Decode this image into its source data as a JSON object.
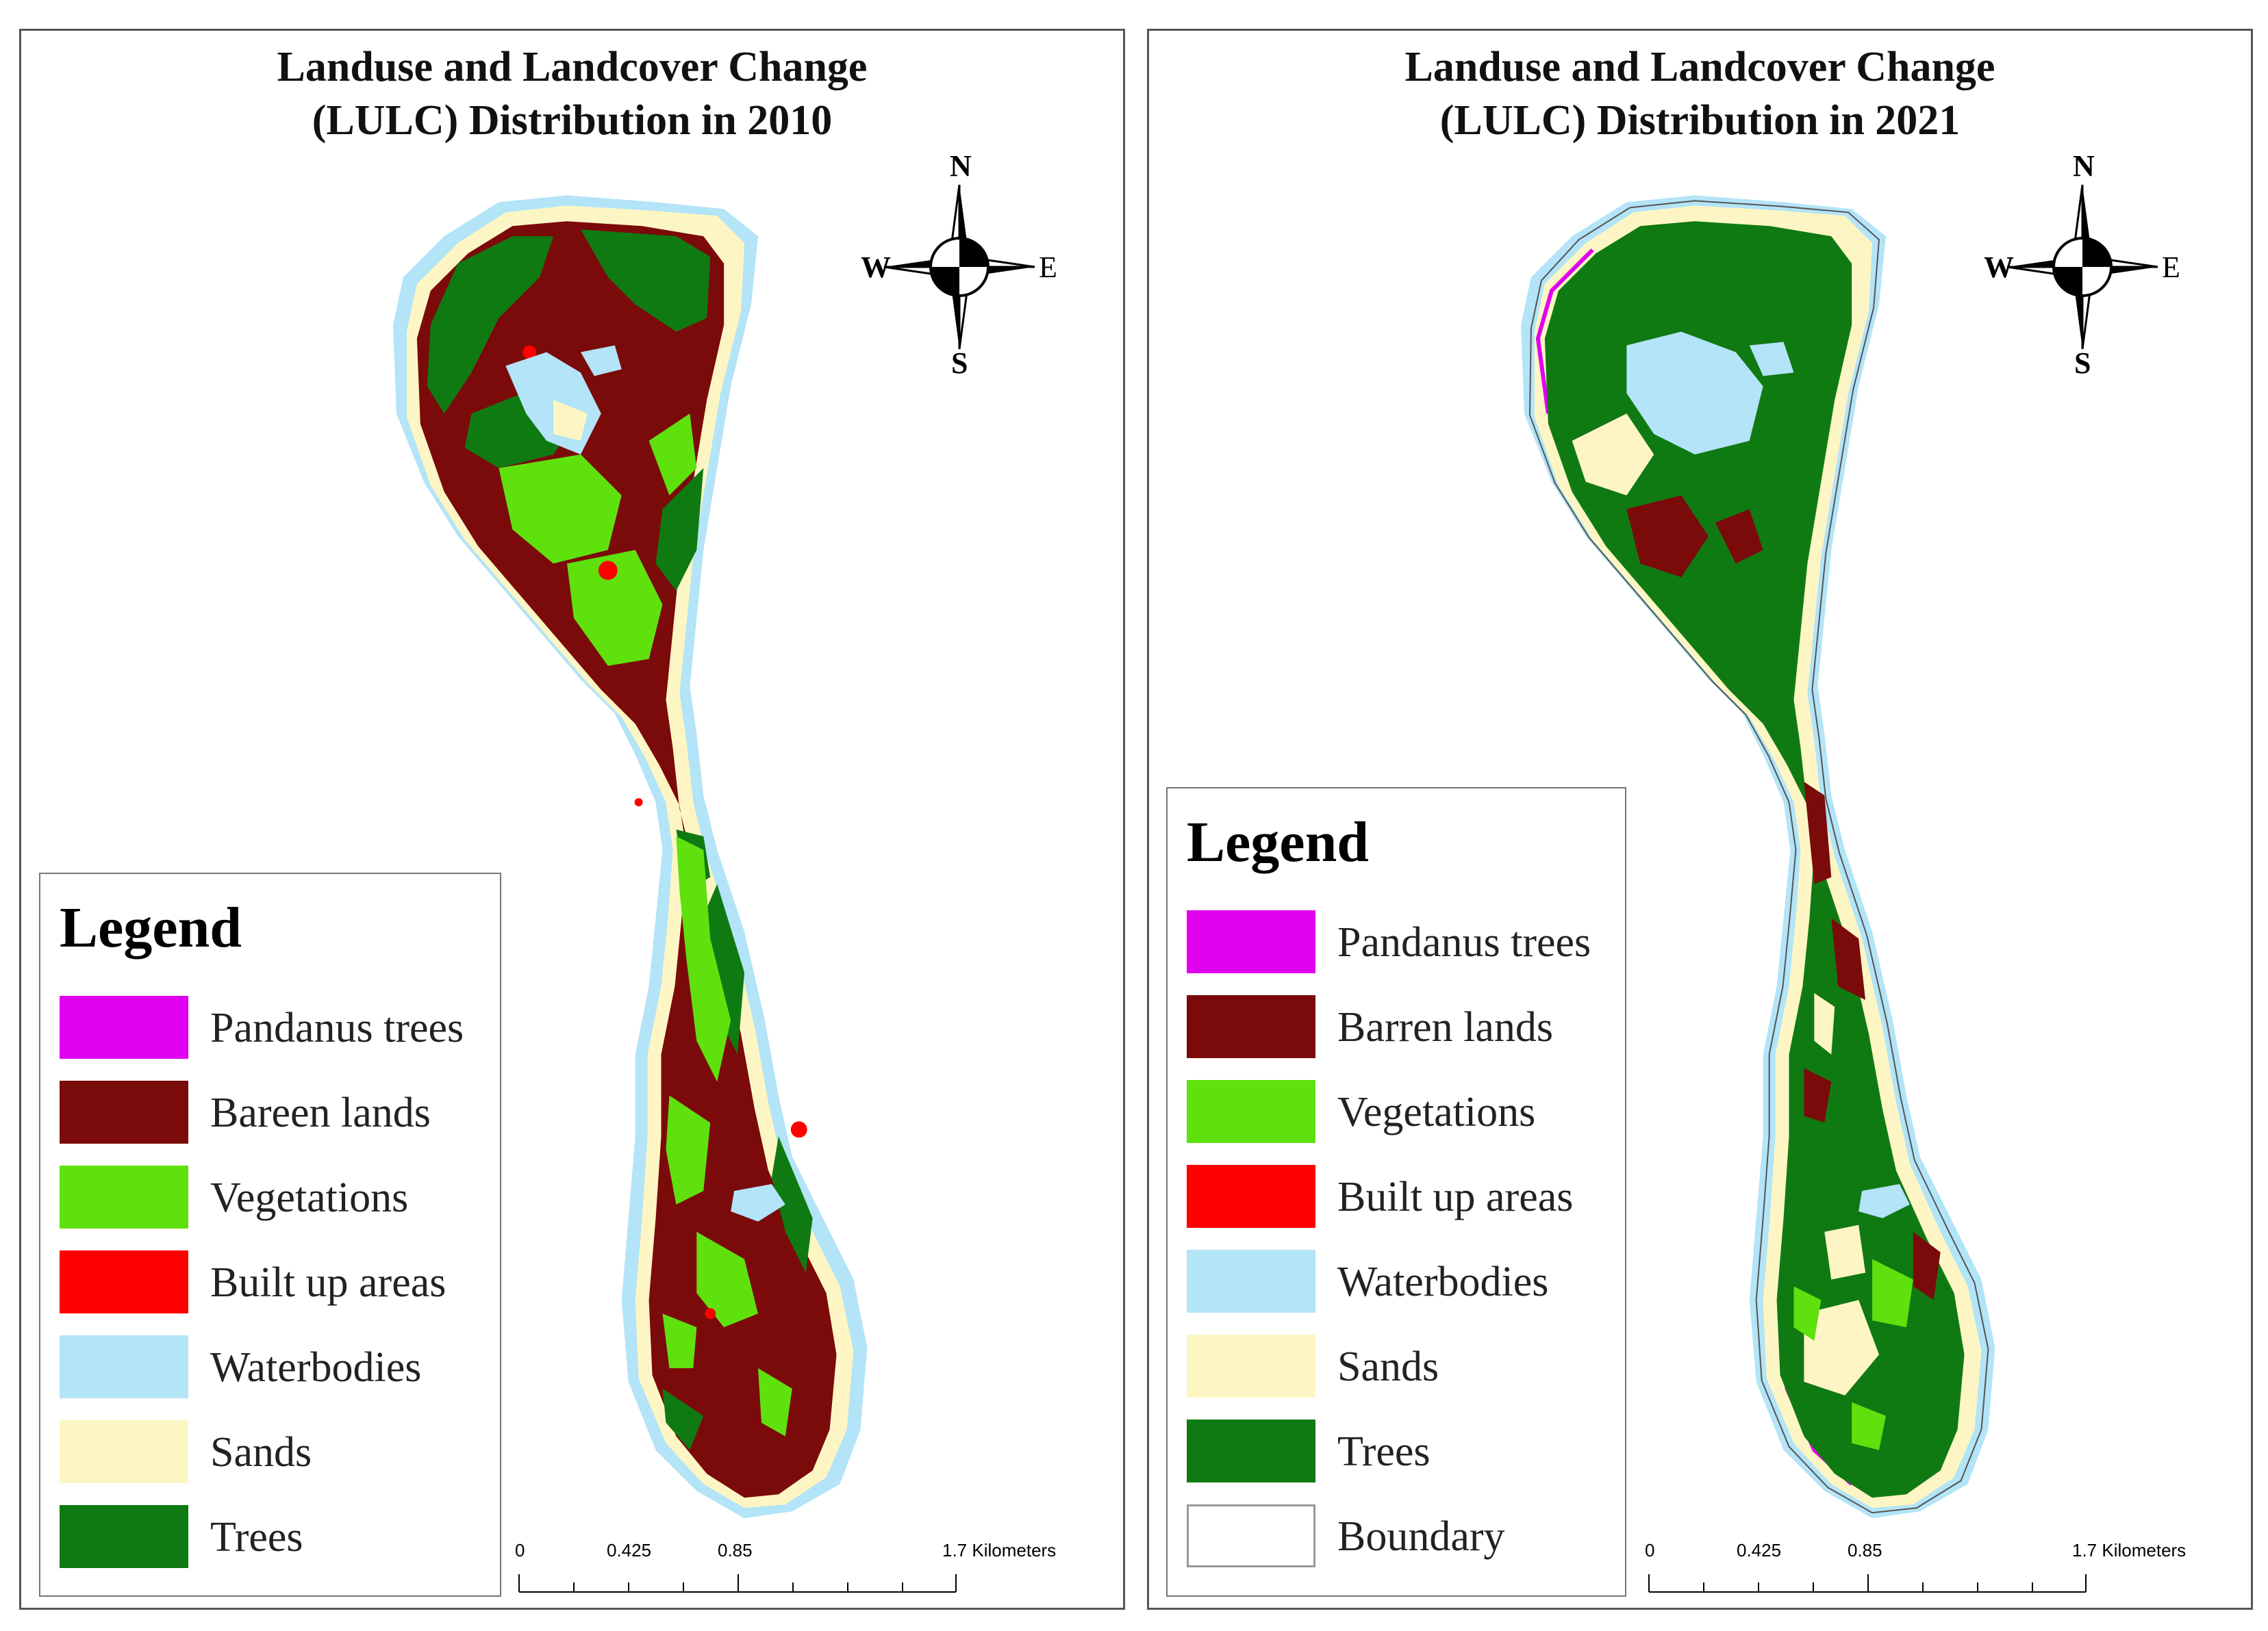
{
  "colors": {
    "pandanus": "#e100f0",
    "barren": "#7b0a0a",
    "vegetation": "#5fe10e",
    "builtup": "#ff0000",
    "water": "#b3e4f7",
    "sand": "#fdf6c4",
    "trees": "#107a12",
    "boundary": "#ffffff"
  },
  "compass": {
    "n": "N",
    "s": "S",
    "e": "E",
    "w": "W"
  },
  "panels": [
    {
      "title_line1": "Landuse and Landcover Change",
      "title_line2": "(LULC) Distribution in 2010",
      "legend": {
        "title": "Legend",
        "items": [
          {
            "label": "Pandanus trees",
            "color": "#e100f0"
          },
          {
            "label": "Bareen lands",
            "color": "#7b0a0a"
          },
          {
            "label": "Vegetations",
            "color": "#5fe10e"
          },
          {
            "label": "Built up areas",
            "color": "#ff0000"
          },
          {
            "label": "Waterbodies",
            "color": "#b3e4f7"
          },
          {
            "label": "Sands",
            "color": "#fdf6c4"
          },
          {
            "label": "Trees",
            "color": "#107a12"
          }
        ]
      },
      "scale": {
        "t0": "0",
        "t1": "0.425",
        "t2": "0.85",
        "t3": "1.7 Kilometers"
      }
    },
    {
      "title_line1": "Landuse and Landcover Change",
      "title_line2": "(LULC) Distribution in 2021",
      "legend": {
        "title": "Legend",
        "items": [
          {
            "label": "Pandanus trees",
            "color": "#e100f0"
          },
          {
            "label": "Barren lands",
            "color": "#7b0a0a"
          },
          {
            "label": "Vegetations",
            "color": "#5fe10e"
          },
          {
            "label": "Built up areas",
            "color": "#ff0000"
          },
          {
            "label": "Waterbodies",
            "color": "#b3e4f7"
          },
          {
            "label": "Sands",
            "color": "#fdf6c4"
          },
          {
            "label": "Trees",
            "color": "#107a12"
          },
          {
            "label": "Boundary",
            "color": "#ffffff"
          }
        ]
      },
      "scale": {
        "t0": "0",
        "t1": "0.425",
        "t2": "0.85",
        "t3": "1.7 Kilometers"
      }
    }
  ]
}
